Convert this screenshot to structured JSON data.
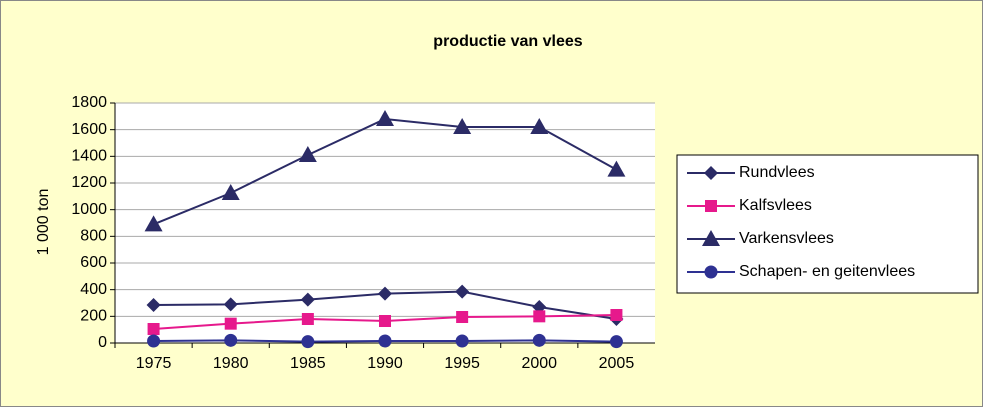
{
  "chart_data": {
    "type": "line",
    "title": "productie van vlees",
    "y_label": "1 000 ton",
    "categories": [
      "1975",
      "1980",
      "1985",
      "1990",
      "1995",
      "2000",
      "2005"
    ],
    "series": [
      {
        "name": "Rundvlees",
        "color": "#2b2b66",
        "marker": "diamond",
        "values": [
          285,
          290,
          325,
          370,
          385,
          270,
          180
        ]
      },
      {
        "name": "Kalfsvlees",
        "color": "#e6198c",
        "marker": "square",
        "values": [
          105,
          145,
          180,
          165,
          195,
          200,
          210
        ]
      },
      {
        "name": "Varkensvlees",
        "color": "#2b2b66",
        "marker": "triangle",
        "values": [
          890,
          1125,
          1410,
          1680,
          1620,
          1620,
          1300
        ]
      },
      {
        "name": "Schapen- en geitenvlees",
        "color": "#2e3192",
        "marker": "circle",
        "values": [
          15,
          20,
          10,
          15,
          15,
          20,
          10
        ]
      }
    ],
    "ylim": [
      0,
      1800
    ],
    "yticks": [
      0,
      200,
      400,
      600,
      800,
      1000,
      1200,
      1400,
      1600,
      1800
    ],
    "grid": true,
    "legend": "right"
  }
}
